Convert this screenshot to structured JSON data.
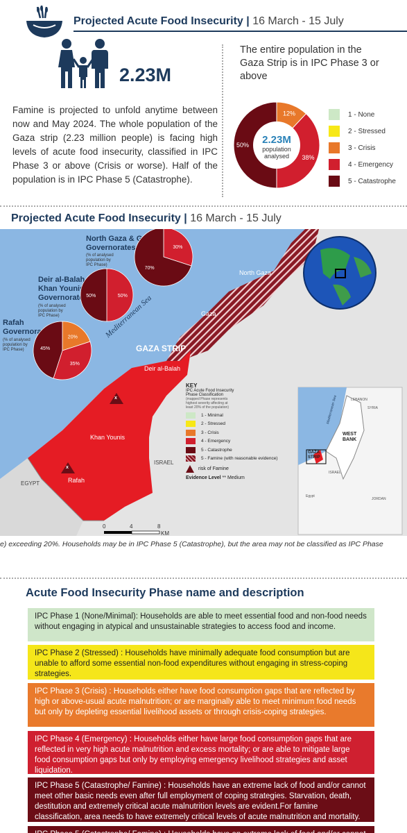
{
  "header": {
    "title": "Projected Acute Food Insecurity",
    "separator": "|",
    "date": "16  March - 15 July"
  },
  "summary": {
    "population": "2.23M",
    "paragraph": "Famine is projected to unfold anytime between now and May 2024. The whole population of the Gaza strip (2.23 million people) is facing high levels of acute food insecurity, classified in IPC Phase 3 or above (Crisis or worse). Half of the population is in IPC Phase 5 (Catastrophe).",
    "right_heading": "The entire population in the Gaza Strip is in IPC Phase 3 or above"
  },
  "chart_data": {
    "type": "pie",
    "categories": [
      "3 - Crisis",
      "4 - Emergency",
      "5 - Catastrophe"
    ],
    "values": [
      12,
      38,
      50
    ],
    "center_value": "2.23M",
    "center_label_1": "population",
    "center_label_2": "analysed",
    "slice_labels": [
      "12%",
      "38%",
      "50%"
    ],
    "colors": [
      "#e8782a",
      "#d11f2e",
      "#6a0b14"
    ]
  },
  "legend": [
    {
      "label": "1 - None",
      "color": "#cde8c6"
    },
    {
      "label": "2 - Stressed",
      "color": "#f7e817"
    },
    {
      "label": "3 - Crisis",
      "color": "#e8782a"
    },
    {
      "label": "4 - Emergency",
      "color": "#d11f2e"
    },
    {
      "label": "5 - Catastrophe",
      "color": "#6a0b14"
    }
  ],
  "map_header": {
    "title": "Projected Acute Food Insecurity",
    "separator": "|",
    "date": "16  March - 15 July"
  },
  "map": {
    "sea": "Mediterranean Sea",
    "gaza_strip": "GAZA STRIP",
    "north_gaza": "North Gaza",
    "gaza": "Gaza",
    "deir": "Deir al-Balah",
    "khan": "Khan Younis",
    "rafah": "Rafah",
    "israel": "ISRAEL",
    "egypt": "EGYPT",
    "scale": [
      "0",
      "4",
      "8"
    ],
    "scale_unit": "KM",
    "pies": [
      {
        "title_1": "North Gaza & Gaza",
        "title_2": "Governorates",
        "note_1": "(% of analysed",
        "note_2": "population by",
        "note_3": "IPC Phase)",
        "values": [
          30,
          70
        ],
        "labels": [
          "30%",
          "70%"
        ]
      },
      {
        "title_1": "Deir al-Balah &",
        "title_2": "Khan Younis",
        "title_3": "Governorates",
        "note_1": "(% of analysed",
        "note_2": "population by",
        "note_3": "IPC Phase)",
        "values": [
          50,
          50
        ],
        "labels": [
          "50%",
          "50%"
        ]
      },
      {
        "title_1": "Rafah",
        "title_2": "Governorate",
        "note_1": "(% of analysed",
        "note_2": "population by",
        "note_3": "IPC Phase)",
        "values": [
          20,
          35,
          45
        ],
        "labels": [
          "20%",
          "35%",
          "45%"
        ]
      }
    ],
    "key": {
      "title": "KEY",
      "subtitle_1": "IPC Acute Food Insecurity",
      "subtitle_2": "Phase Classification",
      "note_1": "(mapped Phase represents",
      "note_2": "highest severity affecting at",
      "note_3": "least 20% of the population)",
      "items": [
        {
          "label": "1 - Minimal",
          "color": "#cde8c6"
        },
        {
          "label": "2 - Stressed",
          "color": "#f7e817"
        },
        {
          "label": "3 - Crisis",
          "color": "#e8782a"
        },
        {
          "label": "4 - Emergency",
          "color": "#d11f2e"
        },
        {
          "label": "5 - Catastrophe",
          "color": "#6a0b14"
        },
        {
          "label": "5 -  Famine (with reasonable evidence)",
          "color": "#8a1a25"
        }
      ],
      "risk": "risk of Famine",
      "evidence_label": "Evidence Level",
      "evidence_marks": "**",
      "evidence_value": "Medium"
    },
    "inset": {
      "lebanon": "LEBANON",
      "syria": "SYRIA",
      "west_bank_1": "WEST",
      "west_bank_2": "BANK",
      "gaza_1": "GAZA",
      "gaza_2": "STRIP",
      "israel": "ISRAEL",
      "egypt": "Egypt",
      "jordan": "JORDAN",
      "sea": "Mediterranean Sea"
    }
  },
  "footnote": "e) exceeding 20%. Households may be in IPC Phase 5 (Catastrophe), but the area may not be classified as IPC Phase",
  "phases_heading": "Acute Food Insecurity Phase name and description",
  "phases": [
    {
      "name": "IPC Phase 1 (None/Minimal):",
      "text": " Households are able to meet essential food and non-food needs without engaging in atypical and unsustainable strategies to access food and income.",
      "bg": "#cfe6c9",
      "fg": "#222"
    },
    {
      "name": "IPC Phase 2 (Stressed) :",
      "text": " Households have minimally adequate food consumption but are unable to afford some essential non-food expenditures without engaging in stress-coping strategies.",
      "bg": "#f5e61a",
      "fg": "#222"
    },
    {
      "name": "IPC Phase 3 (Crisis) :",
      "text": " Households either have food consumption gaps that are reflected by high or above-usual acute malnutrition; or are marginally able to meet minimum food needs but only by depleting essential livelihood assets or through crisis-coping strategies.",
      "bg": "#e97a2c",
      "fg": "#fff"
    },
    {
      "name": "IPC Phase 4 (Emergency) :",
      "text": " Households either have large food consumption gaps that are reflected in very high acute malnutrition and excess mortality; or are able to mitigate large food consumption gaps but only by employing emergency livelihood strategies and asset liquidation.",
      "bg": "#cf2030",
      "fg": "#fff"
    },
    {
      "name": "IPC Phase 5 (Catastrophe/ Famine) :",
      "text": " Households have an extreme lack of food and/or cannot meet other basic needs even after full employment of coping strategies. Starvation, death, destitution and extremely critical acute malnutrition levels are evident.For famine classification, area needs to have extremely critical levels of acute malnutrition and mortality.",
      "bg": "#6b0d16",
      "fg": "#fff"
    },
    {
      "name": "IPC Phase 5 (Catastrophe/ Famine) :",
      "text": " Households have an extreme lack of food and/or cannot",
      "bg": "#6b0d16",
      "fg": "#fff"
    }
  ]
}
